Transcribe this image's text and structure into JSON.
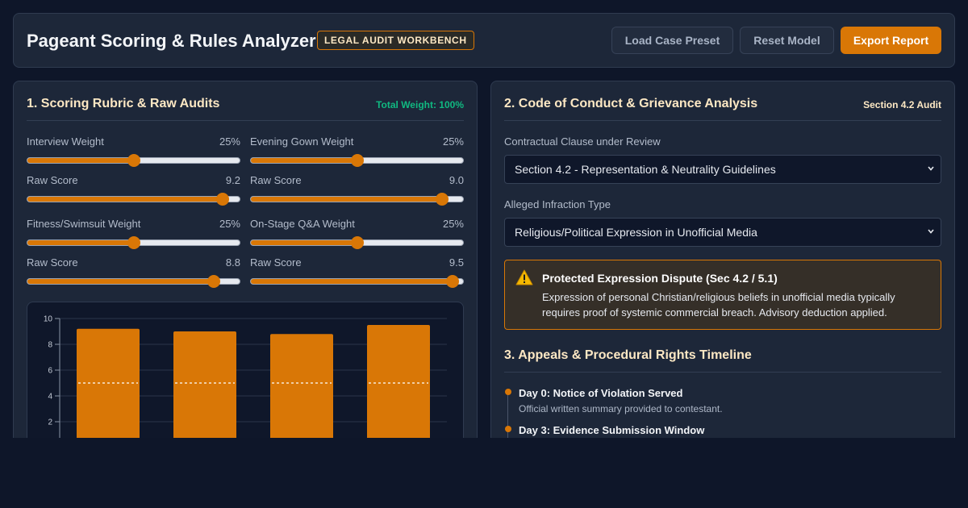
{
  "header": {
    "title": "Pageant Scoring & Rules Analyzer",
    "badge": "LEGAL AUDIT WORKBENCH",
    "buttons": {
      "load_preset": "Load Case Preset",
      "reset": "Reset Model",
      "export": "Export Report"
    }
  },
  "rubric": {
    "title": "1. Scoring Rubric & Raw Audits",
    "total_weight": "Total Weight: 100%",
    "categories": [
      {
        "weight_label": "Interview Weight",
        "weight_text": "25%",
        "weight": 25,
        "score_label": "Raw Score",
        "score_text": "9.2",
        "score": 9.2
      },
      {
        "weight_label": "Evening Gown Weight",
        "weight_text": "25%",
        "weight": 25,
        "score_label": "Raw Score",
        "score_text": "9.0",
        "score": 9.0
      },
      {
        "weight_label": "Fitness/Swimsuit Weight",
        "weight_text": "25%",
        "weight": 25,
        "score_label": "Raw Score",
        "score_text": "8.8",
        "score": 8.8
      },
      {
        "weight_label": "On-Stage Q&A Weight",
        "weight_text": "25%",
        "weight": 25,
        "score_label": "Raw Score",
        "score_text": "9.5",
        "score": 9.5
      }
    ],
    "slider_ranges": {
      "weight": [
        0,
        50
      ],
      "score": [
        0,
        10
      ]
    }
  },
  "chart_data": {
    "type": "bar",
    "values": [
      9.2,
      9.0,
      8.8,
      9.5
    ],
    "reference_line": 5,
    "ylim": [
      0,
      10
    ],
    "yticks": [
      "10",
      "8",
      "6",
      "4",
      "2"
    ],
    "ytick_values": [
      10,
      8,
      6,
      4,
      2
    ],
    "grid": true,
    "bar_color": "#d97706"
  },
  "conduct": {
    "title": "2. Code of Conduct & Grievance Analysis",
    "section_badge": "Section 4.2 Audit",
    "clause_label": "Contractual Clause under Review",
    "clause_value": "Section 4.2 - Representation & Neutrality Guidelines",
    "infraction_label": "Alleged Infraction Type",
    "infraction_value": "Religious/Political Expression in Unofficial Media",
    "alert": {
      "icon": "warning-icon",
      "title": "Protected Expression Dispute (Sec 4.2 / 5.1)",
      "body": "Expression of personal Christian/religious beliefs in unofficial media typically requires proof of systemic commercial breach. Advisory deduction applied."
    }
  },
  "timeline": {
    "title": "3. Appeals & Procedural Rights Timeline",
    "items": [
      {
        "title": "Day 0: Notice of Violation Served",
        "desc": "Official written summary provided to contestant."
      },
      {
        "title": "Day 3: Evidence Submission Window",
        "desc": ""
      }
    ]
  },
  "colors": {
    "accent": "#d97706",
    "positive": "#10b981",
    "panel": "#1d2739",
    "background": "#0e1629"
  }
}
